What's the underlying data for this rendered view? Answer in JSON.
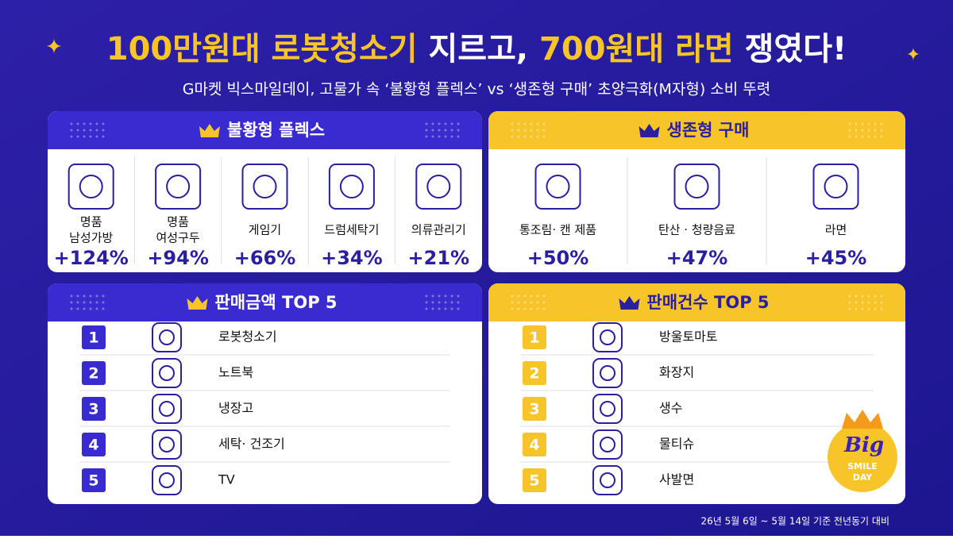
{
  "header": {
    "title_parts": [
      "100만원대 로봇청소기",
      "지르고,",
      "700원대 라면",
      "쟁였다!"
    ],
    "subtitle": "G마켓 빅스마일데이, 고물가 속 ‘불황형 플렉스’ vs ‘생존형 구매’ 초양극화(M자형) 소비 뚜렷"
  },
  "flex": {
    "title": "불황형 플렉스",
    "items": [
      {
        "label": [
          "명품",
          "남성가방"
        ],
        "change": "+124%"
      },
      {
        "label": [
          "명품",
          "여성구두"
        ],
        "change": "+94%"
      },
      {
        "label": [
          "게임기"
        ],
        "change": "+66%"
      },
      {
        "label": [
          "드럼세탁기"
        ],
        "change": "+34%"
      },
      {
        "label": [
          "의류관리기"
        ],
        "change": "+21%"
      }
    ]
  },
  "survival": {
    "title": "생존형 구매",
    "items": [
      {
        "label": [
          "통조림· 캔 제품"
        ],
        "change": "+50%"
      },
      {
        "label": [
          "탄산 · 청량음료"
        ],
        "change": "+47%"
      },
      {
        "label": [
          "라면"
        ],
        "change": "+45%"
      }
    ]
  },
  "sales_amount": {
    "title": "판매금액 TOP 5",
    "items": [
      {
        "rank": "1",
        "name": "로봇청소기"
      },
      {
        "rank": "2",
        "name": "노트북"
      },
      {
        "rank": "3",
        "name": "냉장고"
      },
      {
        "rank": "4",
        "name": "세탁· 건조기"
      },
      {
        "rank": "5",
        "name": "TV"
      }
    ]
  },
  "sales_count": {
    "title": "판매건수 TOP 5",
    "items": [
      {
        "rank": "1",
        "name": "방울토마토"
      },
      {
        "rank": "2",
        "name": "화장지"
      },
      {
        "rank": "3",
        "name": "생수"
      },
      {
        "rank": "4",
        "name": "물티슈"
      },
      {
        "rank": "5",
        "name": "사발면"
      }
    ]
  },
  "badge": {
    "lines": [
      "Big",
      "SMILE",
      "DAY"
    ]
  },
  "footnote": "26년 5월 6일 ~ 5월 14일 기준 전년동기 대비"
}
